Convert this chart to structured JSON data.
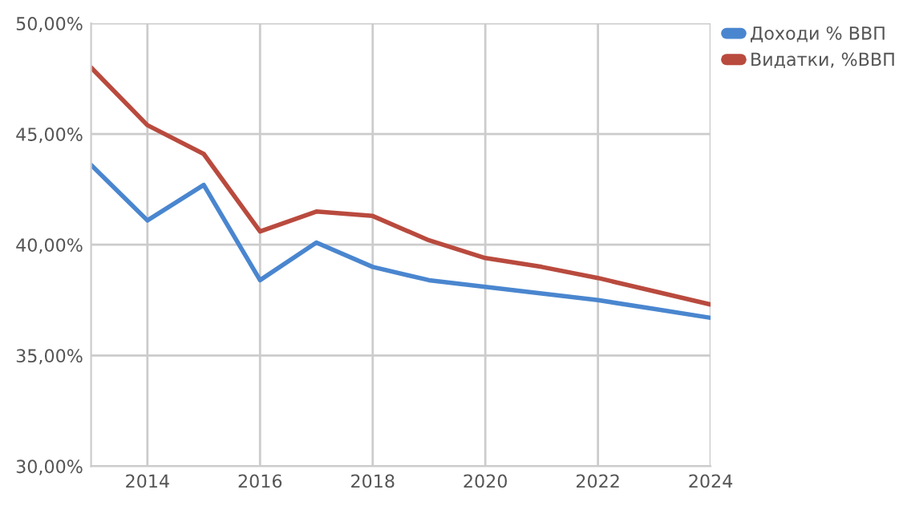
{
  "chart_data": {
    "type": "line",
    "x": [
      2013,
      2014,
      2015,
      2016,
      2017,
      2018,
      2019,
      2020,
      2021,
      2022,
      2023,
      2024
    ],
    "series": [
      {
        "name": "Доходи % ВВП",
        "color": "#4a86cf",
        "values": [
          43.6,
          41.1,
          42.7,
          38.4,
          40.1,
          39.0,
          38.4,
          38.1,
          37.8,
          37.5,
          37.1,
          36.7
        ]
      },
      {
        "name": "Видатки, %ВВП",
        "color": "#b94a3e",
        "values": [
          48.0,
          45.4,
          44.1,
          40.6,
          41.5,
          41.3,
          40.2,
          39.4,
          39.0,
          38.5,
          37.9,
          37.3
        ]
      }
    ],
    "xlim": [
      2013,
      2024
    ],
    "xticks": [
      2014,
      2016,
      2018,
      2020,
      2022,
      2024
    ],
    "ylim": [
      30,
      50
    ],
    "yticks": [
      {
        "value": 30,
        "label": "30,00%"
      },
      {
        "value": 35,
        "label": "35,00%"
      },
      {
        "value": 40,
        "label": "40,00%"
      },
      {
        "value": 45,
        "label": "45,00%"
      },
      {
        "value": 50,
        "label": "50,00%"
      }
    ],
    "grid": true,
    "legend": "top right",
    "marker": "none",
    "line_style": "solid"
  }
}
